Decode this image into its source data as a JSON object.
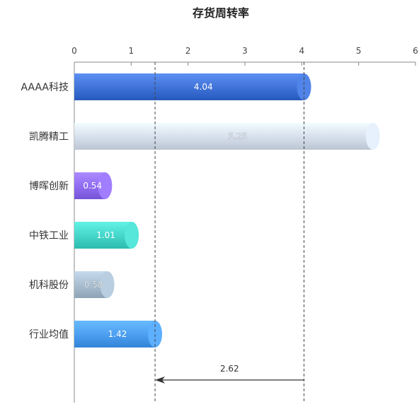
{
  "chart_data": {
    "type": "bar",
    "orientation": "horizontal",
    "title": "存货周转率",
    "categories": [
      "AAAA科技",
      "凯腾精工",
      "博晖创新",
      "中铁工业",
      "机科股份",
      "行业均值"
    ],
    "values": [
      4.04,
      5.25,
      0.54,
      1.01,
      0.58,
      1.42
    ],
    "value_labels": [
      "4.04",
      "5.25",
      "0.54",
      "1.01",
      "0.58",
      "1.42"
    ],
    "xlim": [
      0,
      6
    ],
    "xticks": [
      "0",
      "1",
      "2",
      "3",
      "4",
      "5",
      "6"
    ],
    "xaxis_position": "top",
    "colors": [
      "#3f72d6",
      "#d5deeb",
      "#8f6cf0",
      "#45d4c8",
      "#a7bdcf",
      "#4b9df0"
    ],
    "annotation": {
      "label": "2.62",
      "from": 4.04,
      "to": 1.42
    }
  }
}
